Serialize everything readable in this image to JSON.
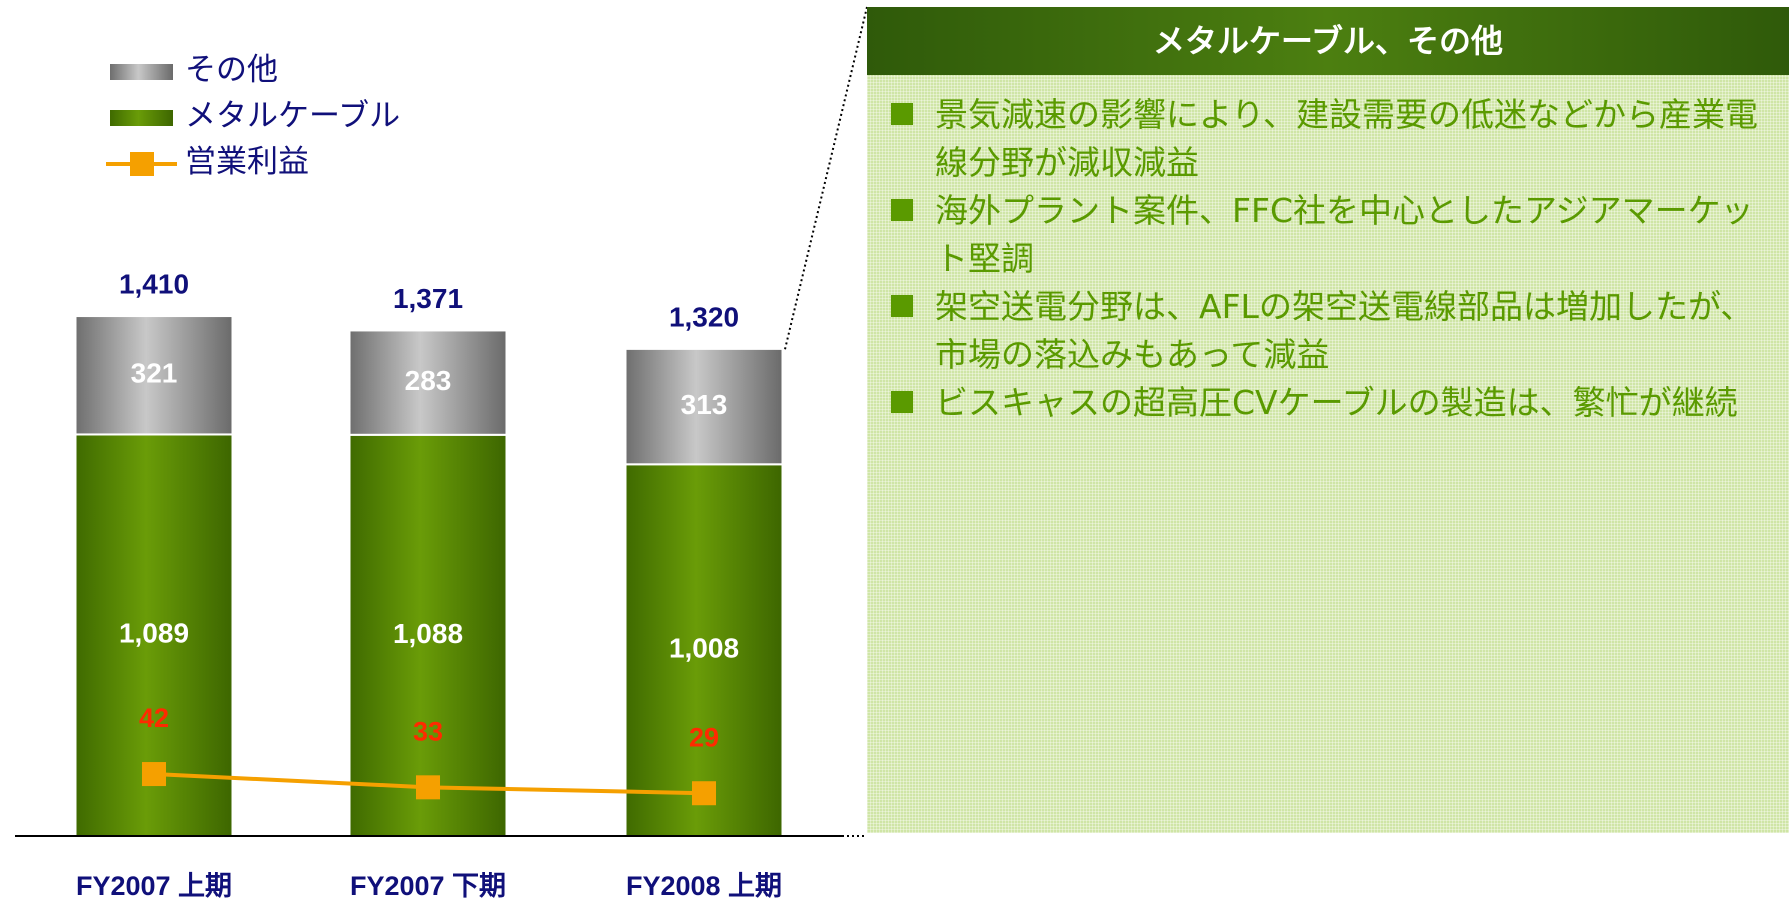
{
  "chart_data": {
    "type": "bar",
    "stacked": true,
    "categories": [
      "FY2007 上期",
      "FY2007 下期",
      "FY2008 上期"
    ],
    "series": [
      {
        "name": "メタルケーブル",
        "color": "#5a8c00",
        "values": [
          1089,
          1088,
          1008
        ],
        "value_labels": [
          "1,089",
          "1,088",
          "1,008"
        ]
      },
      {
        "name": "その他",
        "color": "#8c8c8c",
        "values": [
          321,
          283,
          313
        ]
      },
      {
        "name": "営業利益",
        "type": "line",
        "axis": "y2",
        "color": "#f5a000",
        "values": [
          42,
          33,
          29
        ]
      }
    ],
    "totals": [
      1410,
      1371,
      1320
    ],
    "totals_labels": [
      "1,410",
      "1,371",
      "1,320"
    ],
    "ylim": [
      0,
      1600
    ],
    "y2lim": [
      0,
      400
    ]
  },
  "panel": {
    "title": "メタルケーブル、その他",
    "bullets": [
      "景気減速の影響により、建設需要の低迷などから産業電線分野が減収減益",
      "海外プラント案件、FFC社を中心としたアジアマーケット堅調",
      "架空送電分野は、AFLの架空送電線部品は増加したが、市場の落込みもあって減益",
      "ビスキャスの超高圧CVケーブルの製造は、繁忙が継続"
    ]
  }
}
